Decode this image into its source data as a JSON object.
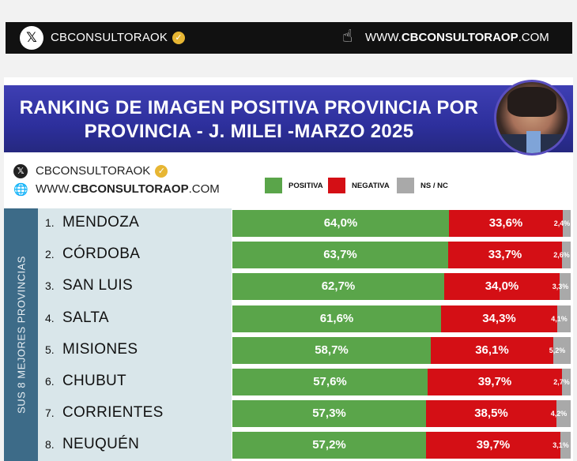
{
  "header": {
    "x_icon": "x-logo-icon",
    "handle": "CBCONSULTORAOK",
    "verified_icon": "verified-badge-icon",
    "hand_icon": "pointing-hand-icon",
    "site_prefix": "WWW.",
    "site_main": "CBCONSULTORAOP",
    "site_suffix": ".COM"
  },
  "banner": {
    "title_line1": "RANKING DE IMAGEN POSITIVA PROVINCIA POR",
    "title_line2": "PROVINCIA - J. MILEI -MARZO 2025"
  },
  "sub": {
    "handle": "CBCONSULTORAOK",
    "site_prefix": "WWW.",
    "site_main": "CBCONSULTORAOP",
    "site_suffix": ".COM"
  },
  "side_label": "SUS 8 MEJORES PROVINCIAS",
  "colors": {
    "positiva": "#5aa54a",
    "negativa": "#d40f15",
    "nsnc": "#a9a9a9"
  },
  "chart_data": {
    "type": "bar",
    "stacked": true,
    "orientation": "horizontal",
    "title": "RANKING DE IMAGEN POSITIVA PROVINCIA POR PROVINCIA - J. MILEI -MARZO 2025",
    "legend": [
      "POSITIVA",
      "NEGATIVA",
      "NS / NC"
    ],
    "legend_position": "top",
    "categories": [
      "MENDOZA",
      "CÓRDOBA",
      "SAN LUIS",
      "SALTA",
      "MISIONES",
      "CHUBUT",
      "CORRIENTES",
      "NEUQUÉN"
    ],
    "ranks": [
      "1.",
      "2.",
      "3.",
      "4.",
      "5.",
      "6.",
      "7.",
      "8."
    ],
    "series": [
      {
        "name": "POSITIVA",
        "values": [
          64.0,
          63.7,
          62.7,
          61.6,
          58.7,
          57.6,
          57.3,
          57.2
        ],
        "labels": [
          "64,0%",
          "63,7%",
          "62,7%",
          "61,6%",
          "58,7%",
          "57,6%",
          "57,3%",
          "57,2%"
        ]
      },
      {
        "name": "NEGATIVA",
        "values": [
          33.6,
          33.7,
          34.0,
          34.3,
          36.1,
          39.7,
          38.5,
          39.7
        ],
        "labels": [
          "33,6%",
          "33,7%",
          "34,0%",
          "34,3%",
          "36,1%",
          "39,7%",
          "38,5%",
          "39,7%"
        ]
      },
      {
        "name": "NS / NC",
        "values": [
          2.4,
          2.6,
          3.3,
          4.1,
          5.2,
          2.7,
          4.2,
          3.1
        ],
        "labels": [
          "2,4%",
          "2,6%",
          "3,3%",
          "4,1%",
          "5,2%",
          "2,7%",
          "4,2%",
          "3,1%"
        ]
      }
    ]
  }
}
